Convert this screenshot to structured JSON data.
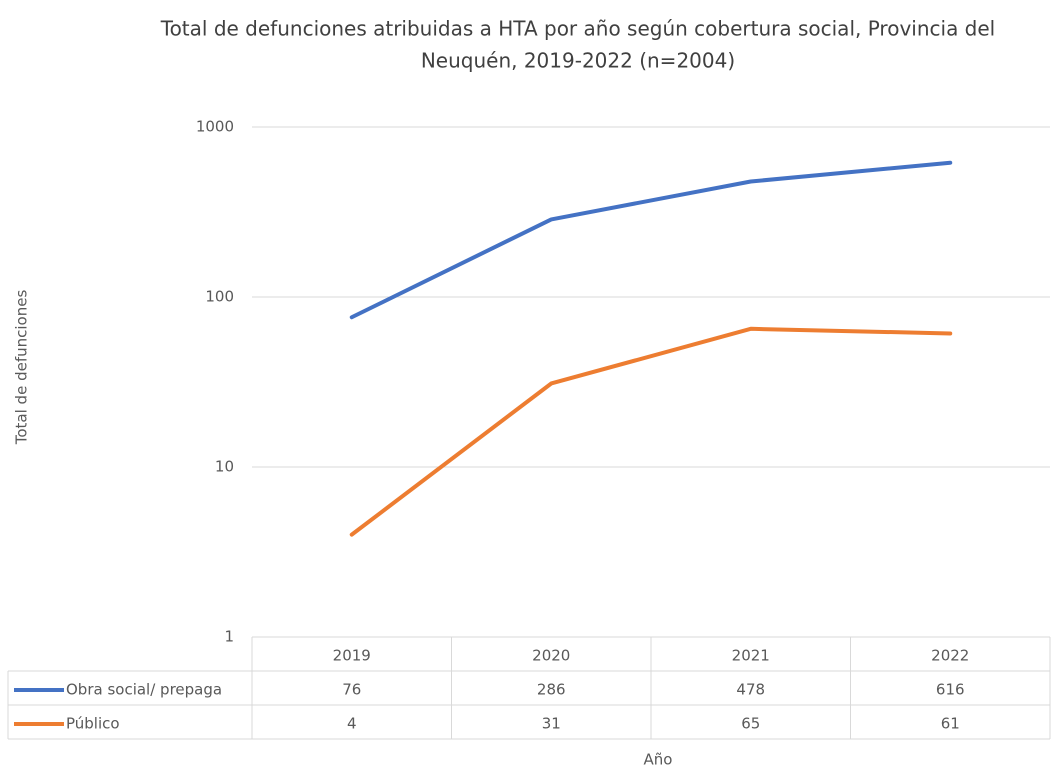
{
  "chart_data": {
    "type": "line",
    "title": "Total de defunciones atribuidas a HTA por año según cobertura social, Provincia del Neuquén, 2019-2022 (n=2004)",
    "x_label": "Año",
    "y_label": "Total de defunciones",
    "categories": [
      "2019",
      "2020",
      "2021",
      "2022"
    ],
    "series": [
      {
        "name": "Obra social/ prepaga",
        "color": "#4472c4",
        "values": [
          76,
          286,
          478,
          616
        ]
      },
      {
        "name": "Público",
        "color": "#ed7d31",
        "values": [
          4,
          31,
          65,
          61
        ]
      }
    ],
    "ylim": [
      1,
      1000
    ],
    "yticks": [
      1,
      10,
      100,
      1000
    ],
    "log_scale": true,
    "grid": true,
    "data_table": true
  }
}
